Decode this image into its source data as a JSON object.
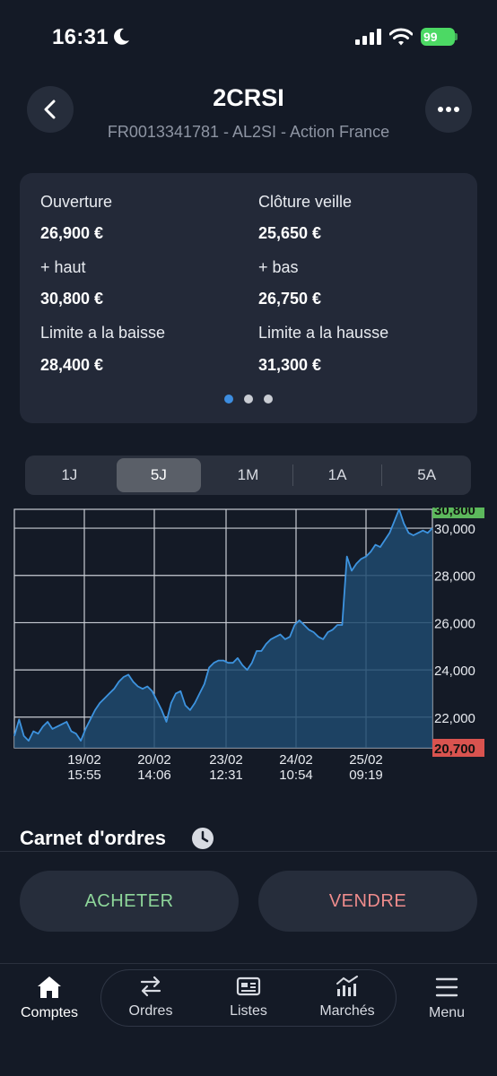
{
  "status": {
    "time": "16:31",
    "battery": "99"
  },
  "header": {
    "title": "2CRSI",
    "subtitle": "FR0013341781 - AL2SI - Action France"
  },
  "info": {
    "items": [
      {
        "label": "Ouverture",
        "value": "26,900 €"
      },
      {
        "label": "Clôture veille",
        "value": "25,650 €"
      },
      {
        "label": "+ haut",
        "value": "30,800 €"
      },
      {
        "label": "+ bas",
        "value": "26,750 €"
      },
      {
        "label": "Limite a la baisse",
        "value": "28,400 €"
      },
      {
        "label": "Limite a la hausse",
        "value": "31,300 €"
      }
    ],
    "pages": 3,
    "active_page": 0
  },
  "periods": {
    "items": [
      "1J",
      "5J",
      "1M",
      "1A",
      "5A"
    ],
    "active": "5J"
  },
  "chart_data": {
    "type": "area",
    "yticks": [
      "30,000",
      "28,000",
      "26,000",
      "24,000",
      "22,000"
    ],
    "ytick_values": [
      30000,
      28000,
      26000,
      24000,
      22000
    ],
    "high_label": "30,800",
    "low_label": "20,700",
    "high_value": 30800,
    "low_value": 20700,
    "xticks": [
      {
        "date": "19/02",
        "time": "15:55"
      },
      {
        "date": "20/02",
        "time": "14:06"
      },
      {
        "date": "23/02",
        "time": "12:31"
      },
      {
        "date": "24/02",
        "time": "10:54"
      },
      {
        "date": "25/02",
        "time": "09:19"
      }
    ],
    "ylim": [
      20700,
      30800
    ],
    "grid": true,
    "series": [
      {
        "values": [
          21200,
          21900,
          21200,
          21000,
          21400,
          21300,
          21600,
          21800,
          21500,
          21600,
          21700,
          21800,
          21400,
          21300,
          21000,
          21500,
          21900,
          22300,
          22600,
          22800,
          23000,
          23200,
          23500,
          23700,
          23800,
          23500,
          23300,
          23200,
          23300,
          23100,
          22700,
          22300,
          21800,
          22600,
          23000,
          23100,
          22500,
          22300,
          22600,
          23000,
          23400,
          24100,
          24300,
          24400,
          24400,
          24300,
          24300,
          24500,
          24200,
          24000,
          24300,
          24800,
          24800,
          25100,
          25300,
          25400,
          25500,
          25300,
          25400,
          25900,
          26100,
          25900,
          25700,
          25600,
          25400,
          25300,
          25600,
          25700,
          25900,
          25900,
          28800,
          28200,
          28500,
          28700,
          28800,
          29000,
          29300,
          29200,
          29500,
          29800,
          30300,
          30800,
          30200,
          29800,
          29700,
          29800,
          29900,
          29800,
          30000
        ]
      }
    ],
    "line_color": "#3d93df",
    "fill_color": "#1e4a6e",
    "high_color": "#5cb85c",
    "low_color": "#d9534f"
  },
  "order_book": {
    "title": "Carnet d'ordres"
  },
  "actions": {
    "buy": "ACHETER",
    "sell": "VENDRE"
  },
  "tabs": {
    "items": [
      {
        "label": "Comptes",
        "icon": "home-icon"
      },
      {
        "label": "Ordres",
        "icon": "arrows-icon"
      },
      {
        "label": "Listes",
        "icon": "card-icon"
      },
      {
        "label": "Marchés",
        "icon": "chart-icon"
      },
      {
        "label": "Menu",
        "icon": "menu-icon"
      }
    ],
    "active": "Comptes"
  }
}
